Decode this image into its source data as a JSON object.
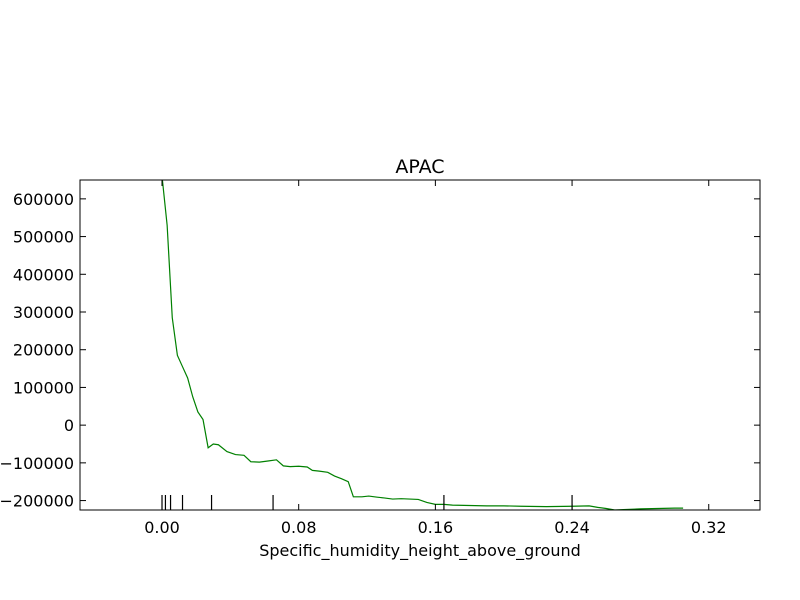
{
  "chart_data": {
    "type": "line",
    "title": "APAC",
    "xlabel": "Specific_humidity_height_above_ground",
    "ylabel": "",
    "xlim": [
      -0.048,
      0.35
    ],
    "ylim": [
      -225000,
      650000
    ],
    "xticks": [
      0.0,
      0.08,
      0.16,
      0.24,
      0.32
    ],
    "xtick_labels": [
      "0.00",
      "0.08",
      "0.16",
      "0.24",
      "0.32"
    ],
    "yticks": [
      600000,
      500000,
      400000,
      300000,
      200000,
      100000,
      0,
      -100000,
      -200000
    ],
    "ytick_labels": [
      "600000",
      "500000",
      "400000",
      "300000",
      "200000",
      "100000",
      "0",
      "−100000",
      "−200000"
    ],
    "grid": false,
    "series": [
      {
        "color": "#008000",
        "x": [
          0.0,
          0.003,
          0.006,
          0.009,
          0.012,
          0.015,
          0.018,
          0.021,
          0.024,
          0.027,
          0.03,
          0.033,
          0.038,
          0.043,
          0.048,
          0.052,
          0.057,
          0.062,
          0.067,
          0.071,
          0.075,
          0.08,
          0.085,
          0.088,
          0.092,
          0.097,
          0.101,
          0.105,
          0.109,
          0.112,
          0.117,
          0.121,
          0.126,
          0.13,
          0.135,
          0.14,
          0.145,
          0.15,
          0.155,
          0.16,
          0.165,
          0.17,
          0.18,
          0.19,
          0.2,
          0.21,
          0.225,
          0.24,
          0.25,
          0.255,
          0.26,
          0.265,
          0.27,
          0.28,
          0.29,
          0.3,
          0.305
        ],
        "y": [
          660000,
          530000,
          285000,
          185000,
          155000,
          125000,
          75000,
          35000,
          15000,
          -60000,
          -50000,
          -52000,
          -70000,
          -78000,
          -80000,
          -97000,
          -98000,
          -95000,
          -92000,
          -108000,
          -110000,
          -109000,
          -111000,
          -120000,
          -122000,
          -125000,
          -135000,
          -142000,
          -150000,
          -190000,
          -190000,
          -188000,
          -191000,
          -193000,
          -196000,
          -195000,
          -196000,
          -197000,
          -205000,
          -210000,
          -210000,
          -212000,
          -213000,
          -214000,
          -214000,
          -215000,
          -216000,
          -215000,
          -214000,
          -218000,
          -221000,
          -225000,
          -224000,
          -222000,
          -221000,
          -220000,
          -220000
        ]
      }
    ],
    "rug_x": [
      0.0,
      0.002,
      0.005,
      0.012,
      0.029,
      0.065,
      0.165,
      0.24
    ]
  }
}
